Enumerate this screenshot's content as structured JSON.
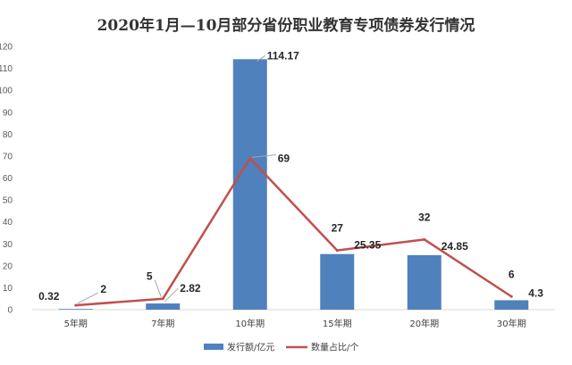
{
  "chart_data": {
    "type": "bar",
    "title": "2020年1月—10月部分省份职业教育专项债券发行情况",
    "categories": [
      "5年期",
      "7年期",
      "10年期",
      "15年期",
      "20年期",
      "30年期"
    ],
    "ylim": [
      0,
      120
    ],
    "yticks": [
      0,
      10,
      20,
      30,
      40,
      50,
      60,
      70,
      80,
      90,
      100,
      110,
      120
    ],
    "grid": false,
    "legend_position": "bottom",
    "series": [
      {
        "name": "发行额/亿元",
        "type": "bar",
        "color": "#4F81BD",
        "values": [
          0.32,
          2.82,
          114.17,
          25.35,
          24.85,
          4.3
        ],
        "labels": [
          "0.32",
          "2.82",
          "114.17",
          "25.35",
          "24.85",
          "4.3"
        ]
      },
      {
        "name": "数量占比/个",
        "type": "line",
        "color": "#C0504D",
        "values": [
          2,
          5,
          69,
          27,
          32,
          6
        ],
        "labels": [
          "2",
          "5",
          "69",
          "27",
          "32",
          "6"
        ]
      }
    ]
  }
}
